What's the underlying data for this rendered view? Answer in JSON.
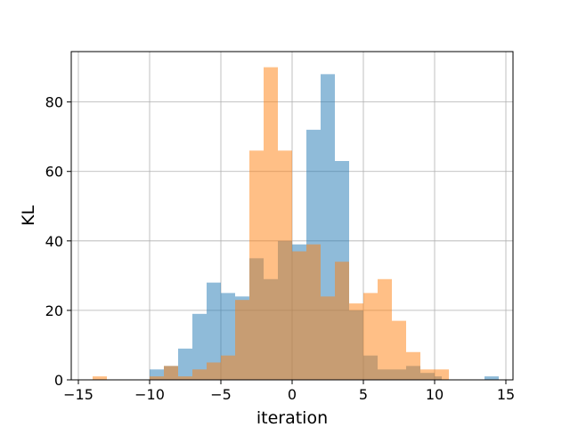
{
  "chart_data": {
    "type": "histogram",
    "title": "",
    "xlabel": "iteration",
    "ylabel": "KL",
    "xlim": [
      -15.5,
      15.5
    ],
    "ylim": [
      0,
      94.5
    ],
    "xticks": [
      -15,
      -10,
      -5,
      0,
      5,
      10,
      15
    ],
    "xtick_labels": [
      "−15",
      "−10",
      "−5",
      "0",
      "5",
      "10",
      "15"
    ],
    "yticks": [
      0,
      20,
      40,
      60,
      80
    ],
    "ytick_labels": [
      "0",
      "20",
      "40",
      "60",
      "80"
    ],
    "grid": true,
    "legend": "none",
    "series": [
      {
        "color": "#1f77b4",
        "alpha": 0.5,
        "bins": [
          {
            "x0": -10.0,
            "x1": -9.0,
            "count": 3
          },
          {
            "x0": -9.0,
            "x1": -8.0,
            "count": 4
          },
          {
            "x0": -8.0,
            "x1": -7.0,
            "count": 9
          },
          {
            "x0": -7.0,
            "x1": -6.0,
            "count": 19
          },
          {
            "x0": -6.0,
            "x1": -5.0,
            "count": 28
          },
          {
            "x0": -5.0,
            "x1": -4.0,
            "count": 25
          },
          {
            "x0": -4.0,
            "x1": -3.0,
            "count": 24
          },
          {
            "x0": -3.0,
            "x1": -2.0,
            "count": 35
          },
          {
            "x0": -2.0,
            "x1": -1.0,
            "count": 29
          },
          {
            "x0": -1.0,
            "x1": 0.0,
            "count": 40
          },
          {
            "x0": 0.0,
            "x1": 1.0,
            "count": 39
          },
          {
            "x0": 1.0,
            "x1": 2.0,
            "count": 72
          },
          {
            "x0": 2.0,
            "x1": 3.0,
            "count": 88
          },
          {
            "x0": 3.0,
            "x1": 4.0,
            "count": 63
          },
          {
            "x0": 4.0,
            "x1": 5.0,
            "count": 20
          },
          {
            "x0": 5.0,
            "x1": 6.0,
            "count": 7
          },
          {
            "x0": 6.0,
            "x1": 7.0,
            "count": 3
          },
          {
            "x0": 7.0,
            "x1": 8.0,
            "count": 3
          },
          {
            "x0": 8.0,
            "x1": 9.0,
            "count": 4
          },
          {
            "x0": 9.0,
            "x1": 10.0,
            "count": 2
          },
          {
            "x0": 10.0,
            "x1": 10.5,
            "count": 1
          },
          {
            "x0": 13.5,
            "x1": 14.5,
            "count": 1
          }
        ]
      },
      {
        "color": "#ff7f0e",
        "alpha": 0.5,
        "bins": [
          {
            "x0": -14.0,
            "x1": -13.0,
            "count": 1
          },
          {
            "x0": -10.0,
            "x1": -9.0,
            "count": 1
          },
          {
            "x0": -9.0,
            "x1": -8.0,
            "count": 4
          },
          {
            "x0": -8.0,
            "x1": -7.0,
            "count": 1
          },
          {
            "x0": -7.0,
            "x1": -6.0,
            "count": 3
          },
          {
            "x0": -6.0,
            "x1": -5.0,
            "count": 5
          },
          {
            "x0": -5.0,
            "x1": -4.0,
            "count": 7
          },
          {
            "x0": -4.0,
            "x1": -3.0,
            "count": 23
          },
          {
            "x0": -3.0,
            "x1": -2.0,
            "count": 66
          },
          {
            "x0": -2.0,
            "x1": -1.0,
            "count": 90
          },
          {
            "x0": -1.0,
            "x1": 0.0,
            "count": 66
          },
          {
            "x0": 0.0,
            "x1": 1.0,
            "count": 37
          },
          {
            "x0": 1.0,
            "x1": 2.0,
            "count": 39
          },
          {
            "x0": 2.0,
            "x1": 3.0,
            "count": 24
          },
          {
            "x0": 3.0,
            "x1": 4.0,
            "count": 34
          },
          {
            "x0": 4.0,
            "x1": 5.0,
            "count": 22
          },
          {
            "x0": 5.0,
            "x1": 6.0,
            "count": 25
          },
          {
            "x0": 6.0,
            "x1": 7.0,
            "count": 29
          },
          {
            "x0": 7.0,
            "x1": 8.0,
            "count": 17
          },
          {
            "x0": 8.0,
            "x1": 9.0,
            "count": 8
          },
          {
            "x0": 9.0,
            "x1": 10.0,
            "count": 3
          },
          {
            "x0": 10.0,
            "x1": 11.0,
            "count": 3
          }
        ]
      }
    ]
  }
}
